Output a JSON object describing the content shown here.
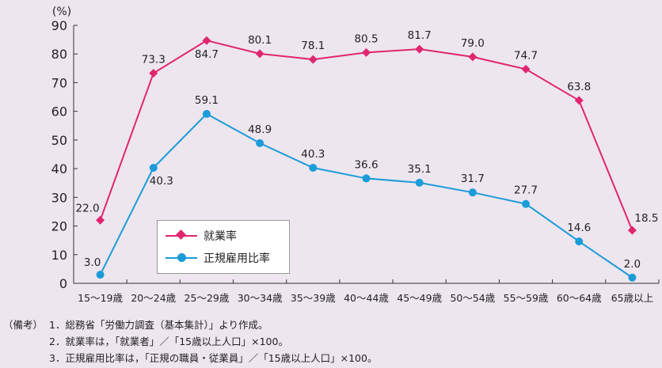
{
  "chart_data": {
    "type": "line",
    "unit_label": "(%)",
    "categories": [
      "15～19歳",
      "20～24歳",
      "25～29歳",
      "30～34歳",
      "35～39歳",
      "40～44歳",
      "45～49歳",
      "50～54歳",
      "55～59歳",
      "60～64歳",
      "65歳以上"
    ],
    "ylim": [
      0,
      90
    ],
    "yticks": [
      0,
      10,
      20,
      30,
      40,
      50,
      60,
      70,
      80,
      90
    ],
    "grid": false,
    "legend_position": "center-left",
    "series": [
      {
        "name": "就業率",
        "color": "#e0266e",
        "marker": "diamond",
        "values": [
          22.0,
          73.3,
          84.7,
          80.1,
          78.1,
          80.5,
          81.7,
          79.0,
          74.7,
          63.8,
          18.5
        ],
        "labels": [
          "22.0",
          "73.3",
          "84.7",
          "80.1",
          "78.1",
          "80.5",
          "81.7",
          "79.0",
          "74.7",
          "63.8",
          "18.5"
        ]
      },
      {
        "name": "正規雇用比率",
        "color": "#1c9bd9",
        "marker": "circle",
        "values": [
          3.0,
          40.3,
          59.1,
          48.9,
          40.3,
          36.6,
          35.1,
          31.7,
          27.7,
          14.6,
          2.0
        ],
        "labels": [
          "3.0",
          "40.3",
          "59.1",
          "48.9",
          "40.3",
          "36.6",
          "35.1",
          "31.7",
          "27.7",
          "14.6",
          "2.0"
        ]
      }
    ]
  },
  "notes": {
    "prefix": "（備考）",
    "items": [
      "1．総務省「労働力調査（基本集計）」より作成。",
      "2．就業率は，「就業者」／「15歳以上人口」×100。",
      "3．正規雇用比率は，「正規の職員・従業員」／「15歳以上人口」×100。"
    ]
  }
}
